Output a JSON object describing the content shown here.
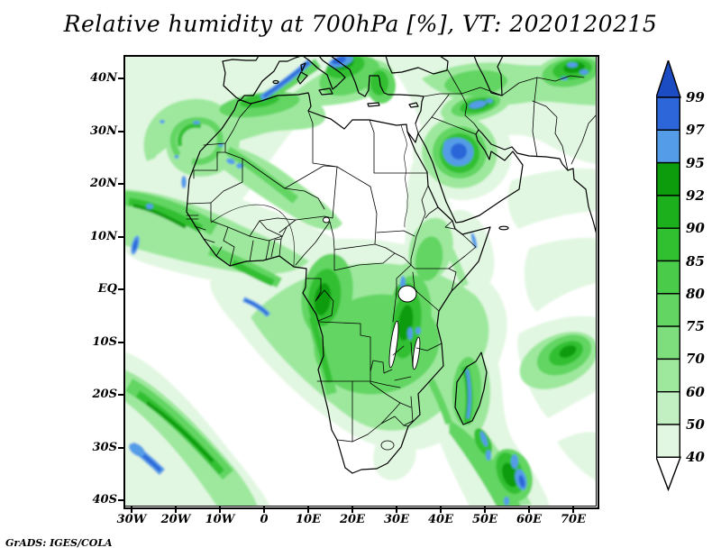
{
  "title": "Relative humidity at 700hPa [%], VT: 2020120215",
  "credit": "GrADS: IGES/COLA",
  "map": {
    "lat_ticks": [
      "40N",
      "30N",
      "20N",
      "10N",
      "EQ",
      "10S",
      "20S",
      "30S",
      "40S"
    ],
    "lon_ticks": [
      "30W",
      "20W",
      "10W",
      "0",
      "10E",
      "20E",
      "30E",
      "40E",
      "50E",
      "60E",
      "70E"
    ]
  },
  "colorbar": {
    "boundary_labels": [
      "99",
      "97",
      "95",
      "92",
      "90",
      "85",
      "80",
      "75",
      "70",
      "60",
      "50",
      "40"
    ],
    "segments": [
      {
        "range": ">99",
        "color": "#1c4cc4"
      },
      {
        "range": "97-99",
        "color": "#2c66d8"
      },
      {
        "range": "95-97",
        "color": "#559ce8"
      },
      {
        "range": "92-95",
        "color": "#0c9c0c"
      },
      {
        "range": "90-92",
        "color": "#1cb01c"
      },
      {
        "range": "85-90",
        "color": "#30c030"
      },
      {
        "range": "80-85",
        "color": "#4acb4a"
      },
      {
        "range": "75-80",
        "color": "#62d562"
      },
      {
        "range": "70-75",
        "color": "#7ede7e"
      },
      {
        "range": "60-70",
        "color": "#9ee89e"
      },
      {
        "range": "50-60",
        "color": "#c3f0c3"
      },
      {
        "range": "40-50",
        "color": "#e2f7e2"
      },
      {
        "range": "<40",
        "color": "#ffffff"
      }
    ]
  },
  "chart_data": {
    "type": "heatmap",
    "title": "Relative humidity at 700hPa [%], VT: 2020120215",
    "variable": "Relative humidity",
    "level": "700hPa",
    "units": "%",
    "valid_time": "2020120215",
    "projection": "lat-lon map of Africa and surroundings",
    "lon_axis": {
      "ticks": [
        "30W",
        "20W",
        "10W",
        "0",
        "10E",
        "20E",
        "30E",
        "40E",
        "50E",
        "60E",
        "70E"
      ],
      "range_deg": [
        -31.6,
        75.3
      ]
    },
    "lat_axis": {
      "ticks": [
        "40N",
        "30N",
        "20N",
        "10N",
        "EQ",
        "10S",
        "20S",
        "30S",
        "40S"
      ],
      "range_deg": [
        -41.2,
        44.3
      ]
    },
    "contour_levels": [
      40,
      50,
      60,
      70,
      75,
      80,
      85,
      90,
      92,
      95,
      97,
      99
    ],
    "palette": [
      "#ffffff",
      "#e2f7e2",
      "#c3f0c3",
      "#9ee89e",
      "#7ede7e",
      "#62d562",
      "#4acb4a",
      "#30c030",
      "#1cb01c",
      "#0c9c0c",
      "#559ce8",
      "#2c66d8",
      "#1c4cc4"
    ],
    "legend_position": "right vertical bar with end triangles",
    "high_humidity_regions": [
      {
        "name": "NE Atlantic cyclonic swirl W of Morocco",
        "approx_lonlat": [
          -21,
          32
        ],
        "peak_level": 95
      },
      {
        "name": "Western Mediterranean streak (Balearics-Sicily)",
        "approx_lonlat": [
          3,
          38
        ],
        "peak_level": 97
      },
      {
        "name": "Italy / Adriatic patch",
        "approx_lonlat": [
          14,
          43
        ],
        "peak_level": 97
      },
      {
        "name": "SE Turkey / N Iraq band",
        "approx_lonlat": [
          42,
          36
        ],
        "peak_level": 97
      },
      {
        "name": "N Saudi Arabia / Iraq blob",
        "approx_lonlat": [
          45,
          30
        ],
        "peak_level": 97
      },
      {
        "name": "Caucasus / Caspian area",
        "approx_lonlat": [
          50,
          43
        ],
        "peak_level": 95
      },
      {
        "name": "ITCZ band W Africa coast ~5-10N",
        "approx_lonlat": [
          -25,
          8
        ],
        "peak_level": 97
      },
      {
        "name": "Gulf of Guinea equatorial streak",
        "approx_lonlat": [
          -3,
          -2
        ],
        "peak_level": 95
      },
      {
        "name": "Congo basin / Cameroon-Gabon",
        "approx_lonlat": [
          12,
          0
        ],
        "peak_level": 92
      },
      {
        "name": "East African Rift lakes",
        "approx_lonlat": [
          30,
          -4
        ],
        "peak_level": 95
      },
      {
        "name": "Madagascar east coast stripe",
        "approx_lonlat": [
          48,
          -18
        ],
        "peak_level": 95
      },
      {
        "name": "SW Atlantic frontal band",
        "approx_lonlat": [
          -27,
          -33
        ],
        "peak_level": 97
      },
      {
        "name": "SW Indian Ocean frontal band",
        "approx_lonlat": [
          50,
          -32
        ],
        "peak_level": 97
      },
      {
        "name": "Central Indian Ocean green blob",
        "approx_lonlat": [
          68,
          -13
        ],
        "peak_level": 92
      }
    ]
  }
}
